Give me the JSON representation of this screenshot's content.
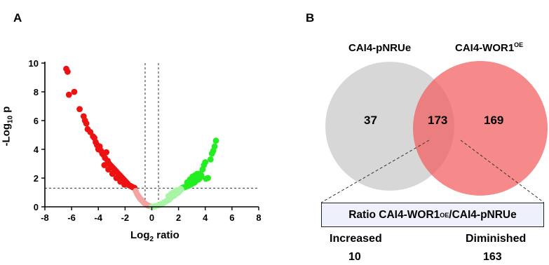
{
  "panels": {
    "a": "A",
    "b": "B"
  },
  "chart_data": [
    {
      "type": "scatter",
      "xlabel_main": "Log",
      "xlabel_sub": "2",
      "xlabel_rest": " ratio",
      "ylabel_main": "-Log",
      "ylabel_sub": "10",
      "ylabel_rest": " p",
      "xlim": [
        -8,
        8
      ],
      "ylim": [
        0,
        10
      ],
      "x_ticks": [
        -8,
        -6,
        -4,
        -2,
        0,
        2,
        4,
        6,
        8
      ],
      "y_ticks": [
        0,
        2,
        4,
        6,
        8,
        10
      ],
      "threshold_x": [
        -0.5,
        0.5
      ],
      "threshold_y": 1.3,
      "colors": {
        "diminished": "#ee1111",
        "diminished_ns": "#f4a3a3",
        "increased": "#22ee22",
        "increased_ns": "#a8f5a8"
      },
      "series": [
        {
          "points": [
            [
              -6.4,
              9.6
            ],
            [
              -6.3,
              9.4
            ],
            [
              -6.2,
              7.8
            ],
            [
              -5.8,
              8.0
            ],
            [
              -5.4,
              6.8
            ],
            [
              -5.1,
              6.3
            ],
            [
              -5.0,
              6.0
            ],
            [
              -4.9,
              5.8
            ],
            [
              -4.8,
              5.4
            ],
            [
              -4.6,
              5.2
            ],
            [
              -4.4,
              4.9
            ],
            [
              -4.3,
              4.8
            ],
            [
              -4.2,
              4.5
            ],
            [
              -4.1,
              4.3
            ],
            [
              -4.0,
              4.0
            ],
            [
              -3.9,
              4.2
            ],
            [
              -3.8,
              3.9
            ],
            [
              -3.7,
              3.7
            ],
            [
              -3.6,
              3.6
            ],
            [
              -3.5,
              3.4
            ],
            [
              -3.4,
              3.8
            ],
            [
              -3.3,
              3.2
            ],
            [
              -3.2,
              3.0
            ],
            [
              -3.1,
              2.9
            ],
            [
              -3.0,
              2.8
            ],
            [
              -2.9,
              2.7
            ],
            [
              -2.8,
              2.6
            ],
            [
              -2.7,
              2.5
            ],
            [
              -2.6,
              2.4
            ],
            [
              -2.5,
              2.3
            ],
            [
              -2.4,
              2.2
            ],
            [
              -2.3,
              2.1
            ],
            [
              -2.2,
              2.0
            ],
            [
              -2.1,
              1.9
            ],
            [
              -2.0,
              1.8
            ],
            [
              -1.9,
              1.7
            ],
            [
              -1.8,
              1.6
            ],
            [
              -1.7,
              1.5
            ],
            [
              -1.6,
              1.45
            ],
            [
              -1.5,
              1.4
            ],
            [
              -1.4,
              1.35
            ],
            [
              -1.3,
              1.32
            ],
            [
              -3.55,
              2.9
            ],
            [
              -3.25,
              2.6
            ],
            [
              -2.95,
              2.3
            ],
            [
              -2.65,
              2.0
            ],
            [
              -2.35,
              1.75
            ],
            [
              -2.05,
              1.55
            ]
          ]
        },
        {
          "points": [
            [
              -1.2,
              1.1
            ],
            [
              -1.1,
              0.9
            ],
            [
              -1.0,
              0.75
            ],
            [
              -0.9,
              0.6
            ],
            [
              -0.8,
              0.5
            ],
            [
              -0.7,
              0.4
            ],
            [
              -0.6,
              0.3
            ],
            [
              -0.5,
              0.22
            ],
            [
              -0.4,
              0.15
            ],
            [
              -0.3,
              0.1
            ],
            [
              -0.2,
              0.06
            ],
            [
              -0.1,
              0.03
            ]
          ]
        },
        {
          "points": [
            [
              4.8,
              4.6
            ],
            [
              4.7,
              4.2
            ],
            [
              4.6,
              3.9
            ],
            [
              4.5,
              3.7
            ],
            [
              4.4,
              3.3
            ],
            [
              4.0,
              3.1
            ],
            [
              3.9,
              2.9
            ],
            [
              3.8,
              2.6
            ],
            [
              3.7,
              2.2
            ],
            [
              3.6,
              2.0
            ],
            [
              3.5,
              1.9
            ],
            [
              3.4,
              2.3
            ],
            [
              3.3,
              1.8
            ],
            [
              3.2,
              1.7
            ],
            [
              3.1,
              1.65
            ],
            [
              3.0,
              1.6
            ],
            [
              2.9,
              1.55
            ],
            [
              2.8,
              1.5
            ],
            [
              2.7,
              1.45
            ],
            [
              2.6,
              1.42
            ],
            [
              2.5,
              1.38
            ],
            [
              2.4,
              1.35
            ],
            [
              2.3,
              1.33
            ],
            [
              3.05,
              2.1
            ],
            [
              3.25,
              2.2
            ],
            [
              2.85,
              1.9
            ],
            [
              3.55,
              2.3
            ],
            [
              4.2,
              2.0
            ],
            [
              4.05,
              1.95
            ],
            [
              2.65,
              1.7
            ]
          ]
        },
        {
          "points": [
            [
              2.2,
              1.2
            ],
            [
              2.1,
              1.1
            ],
            [
              2.0,
              1.0
            ],
            [
              1.9,
              0.95
            ],
            [
              1.8,
              0.9
            ],
            [
              1.7,
              0.8
            ],
            [
              1.6,
              0.75
            ],
            [
              1.5,
              0.7
            ],
            [
              1.4,
              0.6
            ],
            [
              1.3,
              0.5
            ],
            [
              1.2,
              0.45
            ],
            [
              1.1,
              0.4
            ],
            [
              1.0,
              0.35
            ],
            [
              0.9,
              0.28
            ],
            [
              0.8,
              0.22
            ],
            [
              0.7,
              0.18
            ],
            [
              0.6,
              0.14
            ],
            [
              0.5,
              0.1
            ],
            [
              0.4,
              0.08
            ],
            [
              0.3,
              0.05
            ],
            [
              0.2,
              0.03
            ],
            [
              0.1,
              0.02
            ],
            [
              0.0,
              0.0
            ],
            [
              1.65,
              1.05
            ],
            [
              1.85,
              1.15
            ],
            [
              1.45,
              0.9
            ],
            [
              1.25,
              0.75
            ],
            [
              2.15,
              1.25
            ]
          ]
        }
      ]
    },
    {
      "type": "venn",
      "sets": [
        {
          "name": "CAI4-pNRUe",
          "only": 37
        },
        {
          "name_main": "CAI4-WOR1",
          "name_sup": "OE",
          "only": 169
        }
      ],
      "intersection": 173,
      "colors": {
        "left": "#c9c9c9",
        "right": "#f35c5c"
      },
      "ratio_box": {
        "text_a": "Ratio CAI4-WOR1",
        "sup_a": "OE",
        "text_b": "/CAI4-pNRUe"
      },
      "breakdown": [
        {
          "label": "Increased",
          "value": 10
        },
        {
          "label": "Diminished",
          "value": 163
        }
      ]
    }
  ]
}
